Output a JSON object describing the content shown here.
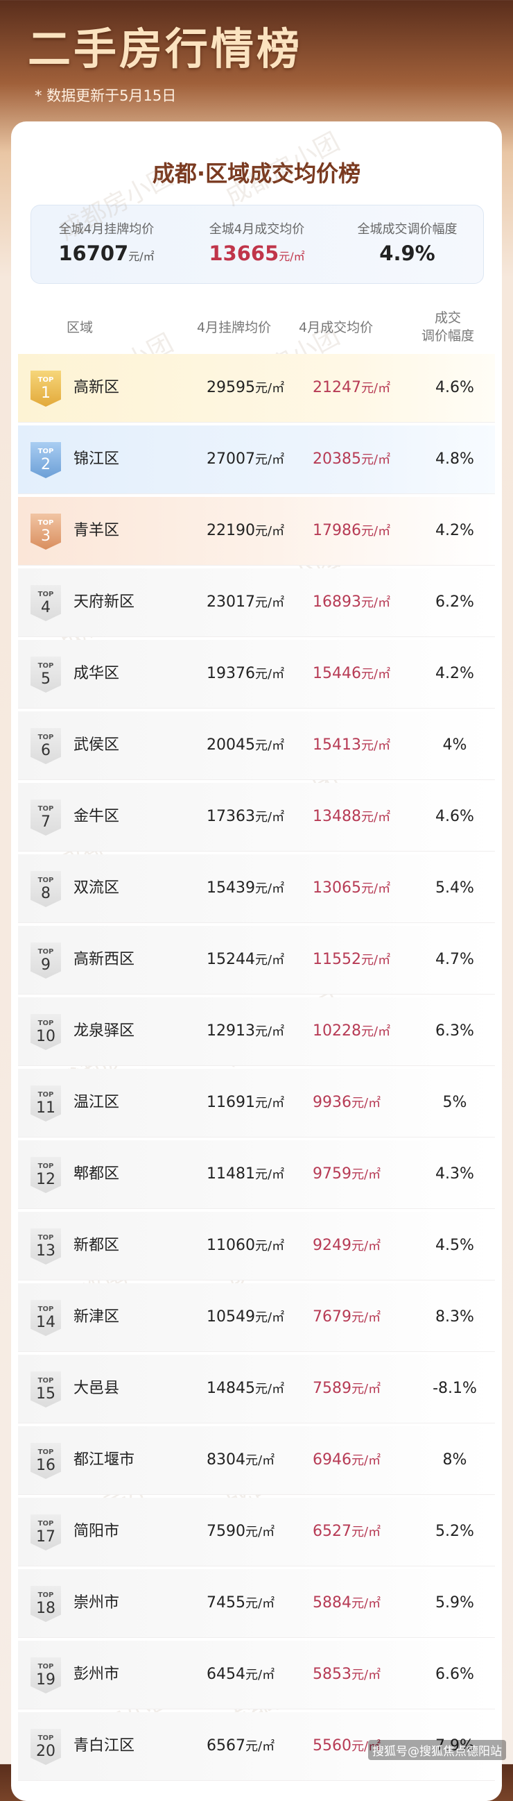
{
  "header": {
    "title": "二手房行情榜",
    "note": "* 数据更新于5月15日"
  },
  "card": {
    "title": "成都·区域成交均价榜",
    "summary": [
      {
        "label": "全城4月挂牌均价",
        "value": "16707"
      },
      {
        "label": "全城4月成交均价",
        "value": "13665"
      },
      {
        "label": "全城成交调价幅度",
        "value": "4.9%"
      }
    ]
  },
  "table": {
    "unit": "元/㎡",
    "badge": "TOP",
    "columns": [
      "区域",
      "4月挂牌均价",
      "4月成交均价",
      "成交",
      "调价幅度"
    ],
    "rows": [
      [
        "1",
        "高新区",
        "29595",
        "21247",
        "4.6%"
      ],
      [
        "2",
        "锦江区",
        "27007",
        "20385",
        "4.8%"
      ],
      [
        "3",
        "青羊区",
        "22190",
        "17986",
        "4.2%"
      ],
      [
        "4",
        "天府新区",
        "23017",
        "16893",
        "6.2%"
      ],
      [
        "5",
        "成华区",
        "19376",
        "15446",
        "4.2%"
      ],
      [
        "6",
        "武侯区",
        "20045",
        "15413",
        "4%"
      ],
      [
        "7",
        "金牛区",
        "17363",
        "13488",
        "4.6%"
      ],
      [
        "8",
        "双流区",
        "15439",
        "13065",
        "5.4%"
      ],
      [
        "9",
        "高新西区",
        "15244",
        "11552",
        "4.7%"
      ],
      [
        "10",
        "龙泉驿区",
        "12913",
        "10228",
        "6.3%"
      ],
      [
        "11",
        "温江区",
        "11691",
        "9936",
        "5%"
      ],
      [
        "12",
        "郫都区",
        "11481",
        "9759",
        "4.3%"
      ],
      [
        "13",
        "新都区",
        "11060",
        "9249",
        "4.5%"
      ],
      [
        "14",
        "新津区",
        "10549",
        "7679",
        "8.3%"
      ],
      [
        "15",
        "大邑县",
        "14845",
        "7589",
        "-8.1%"
      ],
      [
        "16",
        "都江堰市",
        "8304",
        "6946",
        "8%"
      ],
      [
        "17",
        "简阳市",
        "7590",
        "6527",
        "5.2%"
      ],
      [
        "18",
        "崇州市",
        "7455",
        "5884",
        "5.9%"
      ],
      [
        "19",
        "彭州市",
        "6454",
        "5853",
        "6.6%"
      ],
      [
        "20",
        "青白江区",
        "6567",
        "5560",
        "7.9%"
      ]
    ]
  },
  "watermark": "成都房小团",
  "footer": "搜狐号@搜狐焦点德阳站"
}
